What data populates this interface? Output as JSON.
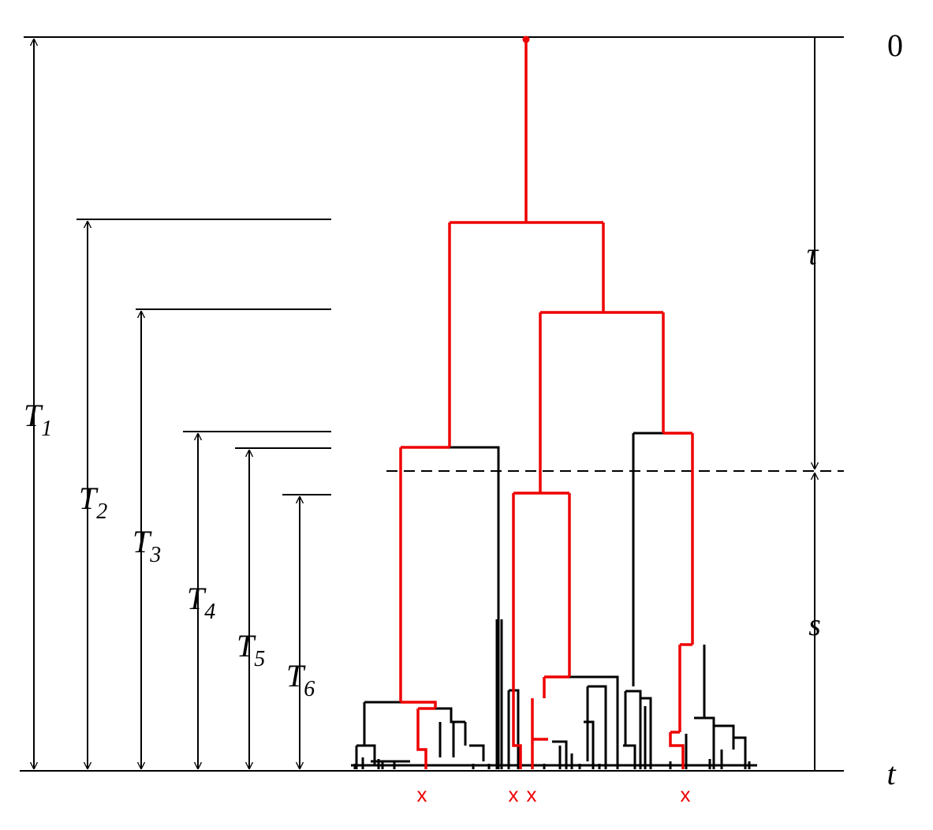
{
  "axis_labels": {
    "top": "0",
    "tau": "τ",
    "s": "s",
    "time": "t"
  },
  "time_labels": [
    {
      "main": "T",
      "sub": "1"
    },
    {
      "main": "T",
      "sub": "2"
    },
    {
      "main": "T",
      "sub": "3"
    },
    {
      "main": "T",
      "sub": "4"
    },
    {
      "main": "T",
      "sub": "5"
    },
    {
      "main": "T",
      "sub": "6"
    }
  ],
  "sample_marks": [
    "x",
    "x",
    "x",
    "x"
  ]
}
